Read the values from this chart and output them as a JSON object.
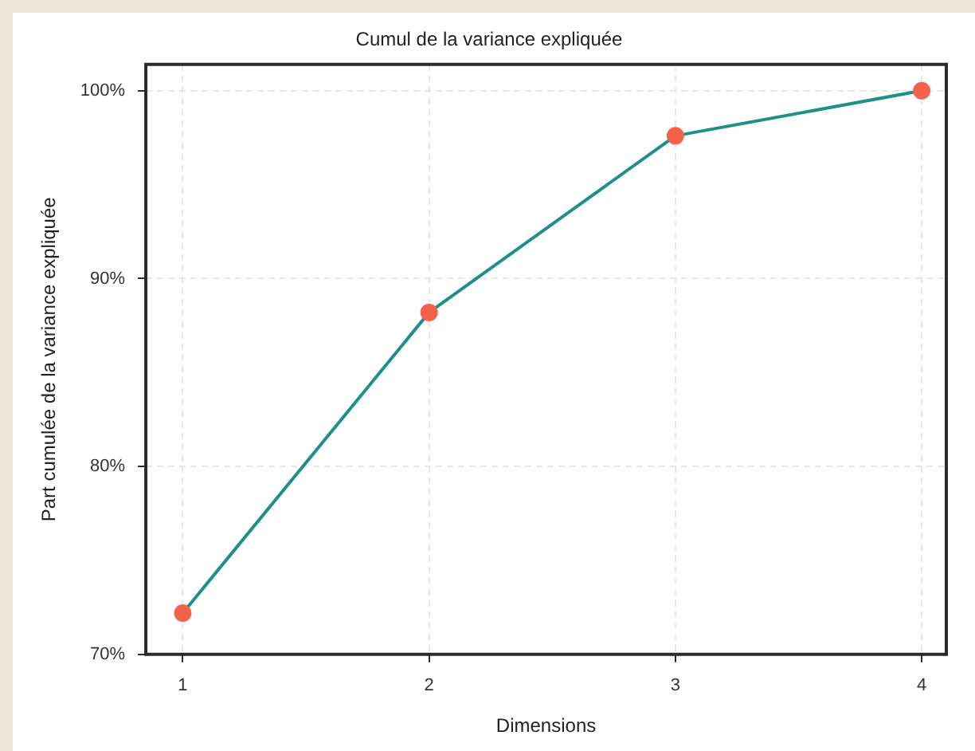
{
  "chart_data": {
    "type": "line",
    "title": "Cumul de la variance expliquée",
    "xlabel": "Dimensions",
    "ylabel": "Part cumulée de la variance expliquée",
    "x": [
      1,
      2,
      3,
      4
    ],
    "series": [
      {
        "color": "#1f8f8c",
        "colors": [
          "#f4624a",
          "#f4624a",
          "#f4624a",
          "#f4624a"
        ],
        "values": [
          72.2,
          88.2,
          97.6,
          100
        ]
      }
    ],
    "xlim": [
      0.85,
      4.1
    ],
    "xticks": [
      1,
      2,
      3,
      4
    ],
    "ylim": [
      70,
      101.4
    ],
    "yticks": [
      {
        "value": 70,
        "label": "70%"
      },
      {
        "value": 80,
        "label": "80%"
      },
      {
        "value": 90,
        "label": "90%"
      },
      {
        "value": 100,
        "label": "100%"
      }
    ],
    "grid": true,
    "marker": "circle",
    "line_style": "solid",
    "legend": false
  }
}
